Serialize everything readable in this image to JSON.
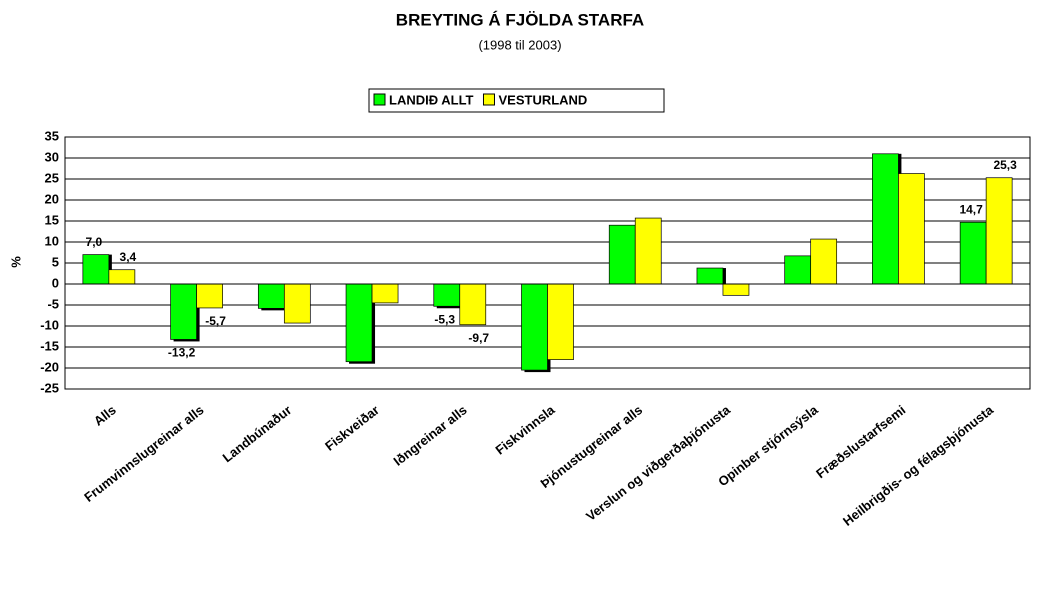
{
  "chart_data": {
    "type": "bar",
    "title": "BREYTING Á FJÖLDA STARFA",
    "subtitle": "(1998 til 2003)",
    "ylabel": "%",
    "categories": [
      "Alls",
      "Frumvinnslugreinar alls",
      "Landbúnaður",
      "Fiskveiðar",
      "Iðngreinar alls",
      "Fiskvinnsla",
      "Þjónustugreinar alls",
      "Verslun og viðgerðaþjónusta",
      "Opinber stjórnsýsla",
      "Fræðslustarfsemi",
      "Heilbrigðis- og félagsþjónusta"
    ],
    "series": [
      {
        "name": "LANDIÐ ALLT",
        "color": "#00ff00",
        "values": [
          7.0,
          -13.2,
          -5.8,
          -18.5,
          -5.3,
          -20.5,
          14.0,
          3.8,
          6.7,
          31.0,
          14.7
        ],
        "value_labels": [
          "7,0",
          "-13,2",
          null,
          null,
          "-5,3",
          null,
          null,
          null,
          null,
          null,
          "14,7"
        ]
      },
      {
        "name": "VESTURLAND",
        "color": "#ffff00",
        "values": [
          3.4,
          -5.7,
          -9.3,
          -4.5,
          -9.7,
          -18.0,
          15.7,
          -2.7,
          10.7,
          26.3,
          25.3
        ],
        "value_labels": [
          "3,4",
          "-5,7",
          null,
          null,
          "-9,7",
          null,
          null,
          null,
          null,
          null,
          "25,3"
        ]
      }
    ],
    "ylim": [
      -25,
      35
    ],
    "yticks": [
      -25,
      -20,
      -15,
      -10,
      -5,
      0,
      5,
      10,
      15,
      20,
      25,
      30,
      35
    ],
    "grid": true,
    "legend": "top"
  }
}
